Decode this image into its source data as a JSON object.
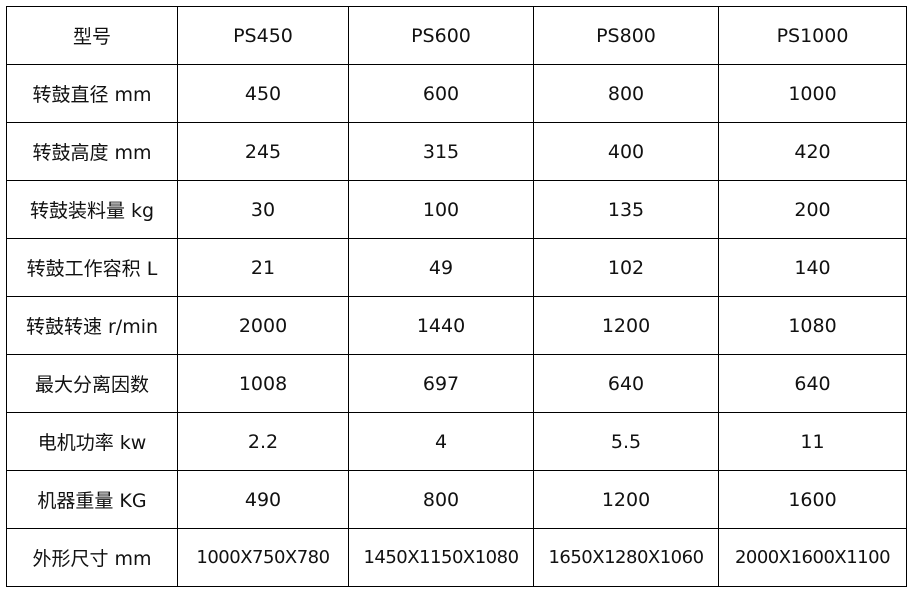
{
  "table": {
    "header": [
      "型号",
      "PS450",
      "PS600",
      "PS800",
      "PS1000"
    ],
    "rows": [
      [
        "转鼓直径 mm",
        "450",
        "600",
        "800",
        "1000"
      ],
      [
        "转鼓高度 mm",
        "245",
        "315",
        "400",
        "420"
      ],
      [
        "转鼓装料量 kg",
        "30",
        "100",
        "135",
        "200"
      ],
      [
        "转鼓工作容积 L",
        "21",
        "49",
        "102",
        "140"
      ],
      [
        "转鼓转速 r/min",
        "2000",
        "1440",
        "1200",
        "1080"
      ],
      [
        "最大分离因数",
        "1008",
        "697",
        "640",
        "640"
      ],
      [
        "电机功率 kw",
        "2.2",
        "4",
        "5.5",
        "11"
      ],
      [
        "机器重量 KG",
        "490",
        "800",
        "1200",
        "1600"
      ],
      [
        "外形尺寸 mm",
        "1000X750X780",
        "1450X1150X1080",
        "1650X1280X1060",
        "2000X1600X1100"
      ]
    ]
  }
}
